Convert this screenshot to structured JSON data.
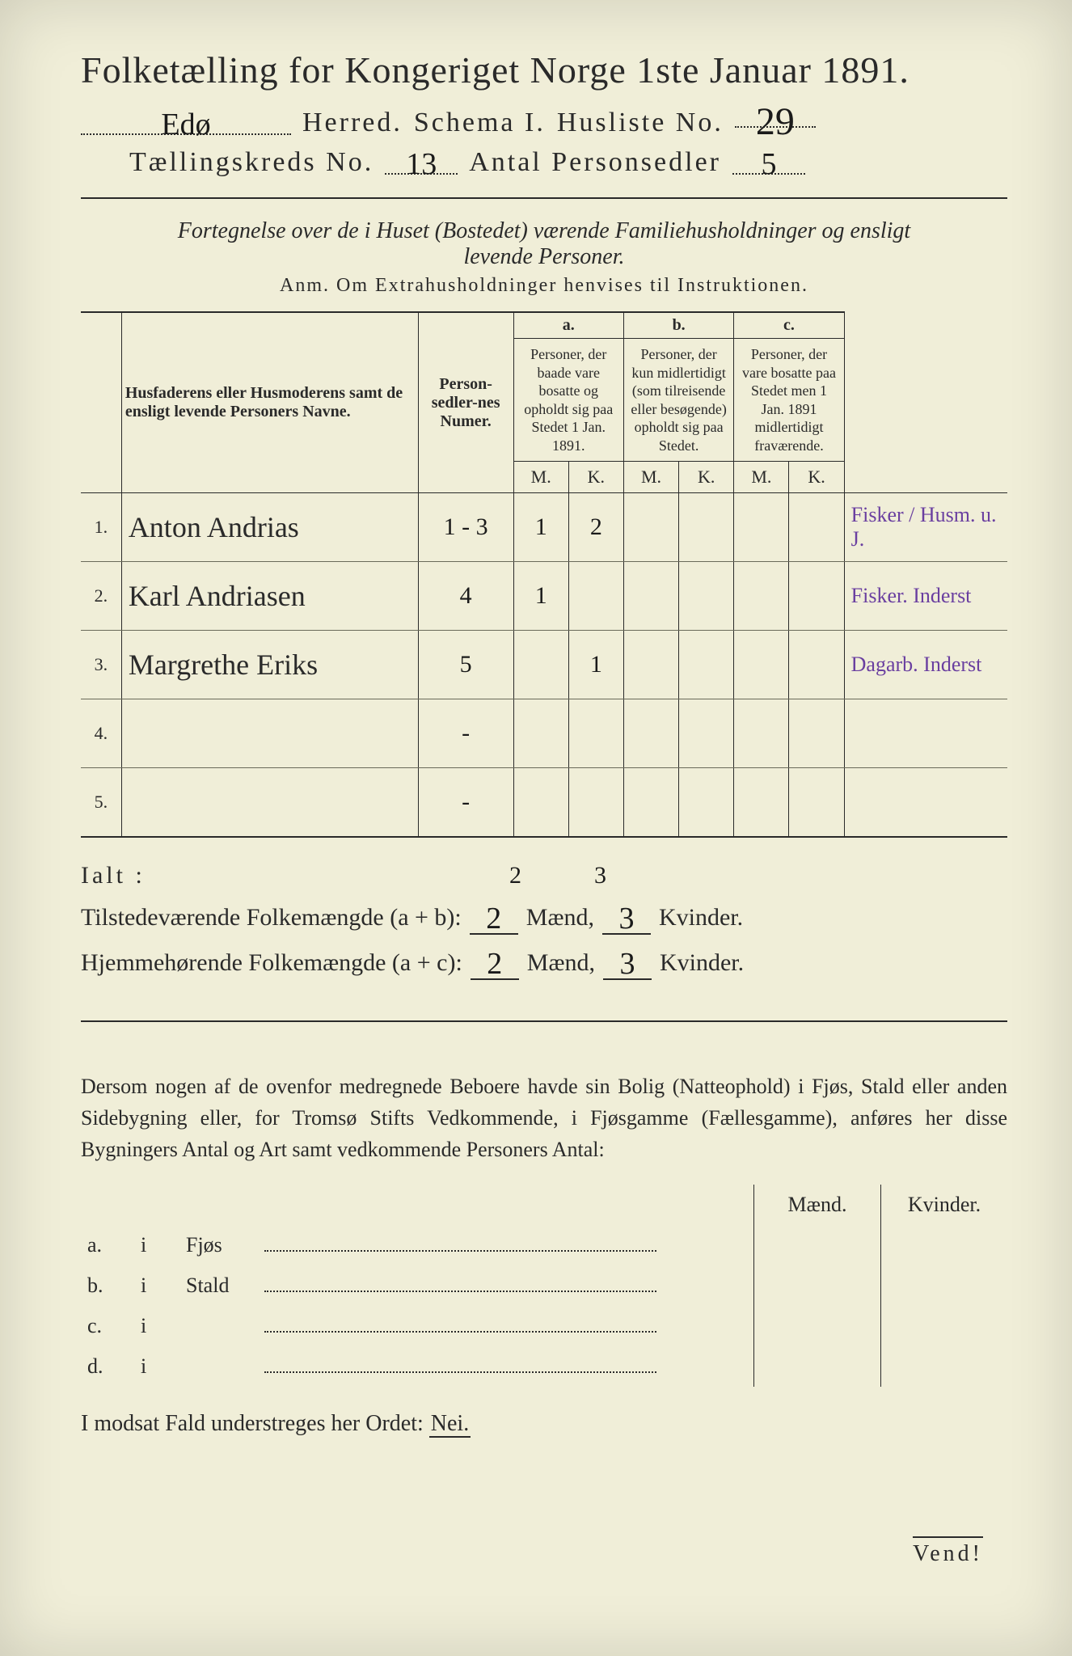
{
  "colors": {
    "paper": "#f0eed8",
    "ink": "#2a2a2a",
    "margin_ink": "#6a3fa0",
    "page_bg": "#3a3a3a"
  },
  "header": {
    "title": "Folketælling for Kongeriget Norge 1ste Januar 1891.",
    "herred_value": "Edø",
    "herred_label": "Herred.",
    "schema_label": "Schema I.",
    "husliste_label": "Husliste No.",
    "husliste_value": "29",
    "kreds_label": "Tællingskreds No.",
    "kreds_value": "13",
    "antal_label": "Antal Personsedler",
    "antal_value": "5"
  },
  "subtitle": "Fortegnelse over de i Huset (Bostedet) værende Familiehusholdninger og ensligt levende Personer.",
  "anm": "Anm.  Om Extrahusholdninger henvises til Instruktionen.",
  "table": {
    "col_names": "Husfaderens eller Husmoderens samt de ensligt levende Personers Navne.",
    "col_numer": "Person-sedler-nes Numer.",
    "col_a_label": "a.",
    "col_a_desc": "Personer, der baade vare bosatte og opholdt sig paa Stedet 1 Jan. 1891.",
    "col_b_label": "b.",
    "col_b_desc": "Personer, der kun midlertidigt (som tilreisende eller besøgende) opholdt sig paa Stedet.",
    "col_c_label": "c.",
    "col_c_desc": "Personer, der vare bosatte paa Stedet men 1 Jan. 1891 midlertidigt fraværende.",
    "m_label": "M.",
    "k_label": "K.",
    "rows": [
      {
        "n": "1.",
        "name": "Anton Andrias",
        "numer": "1 - 3",
        "aM": "1",
        "aK": "2",
        "bM": "",
        "bK": "",
        "cM": "",
        "cK": "",
        "margin": "Fisker / Husm. u. J."
      },
      {
        "n": "2.",
        "name": "Karl Andriasen",
        "numer": "4",
        "aM": "1",
        "aK": "",
        "bM": "",
        "bK": "",
        "cM": "",
        "cK": "",
        "margin": "Fisker. Inderst"
      },
      {
        "n": "3.",
        "name": "Margrethe Eriks",
        "numer": "5",
        "aM": "",
        "aK": "1",
        "bM": "",
        "bK": "",
        "cM": "",
        "cK": "",
        "margin": "Dagarb. Inderst"
      },
      {
        "n": "4.",
        "name": "",
        "numer": "-",
        "aM": "",
        "aK": "",
        "bM": "",
        "bK": "",
        "cM": "",
        "cK": "",
        "margin": ""
      },
      {
        "n": "5.",
        "name": "",
        "numer": "-",
        "aM": "",
        "aK": "",
        "bM": "",
        "bK": "",
        "cM": "",
        "cK": "",
        "margin": ""
      }
    ]
  },
  "totals": {
    "ialt_label": "Ialt :",
    "ialt_m": "2",
    "ialt_k": "3",
    "line1_label": "Tilstedeværende Folkemængde (a + b):",
    "line1_m": "2",
    "line1_k": "3",
    "line2_label": "Hjemmehørende Folkemængde (a + c):",
    "line2_m": "2",
    "line2_k": "3",
    "maend": "Mænd,",
    "kvinder": "Kvinder."
  },
  "paragraph": "Dersom nogen af de ovenfor medregnede Beboere havde sin Bolig (Natteophold) i Fjøs, Stald eller anden Sidebygning eller, for Tromsø Stifts Vedkommende, i Fjøsgamme (Fællesgamme), anføres her disse Bygningers Antal og Art samt vedkommende Personers Antal:",
  "buildings": {
    "maend": "Mænd.",
    "kvinder": "Kvinder.",
    "rows": [
      {
        "k": "a.",
        "i": "i",
        "label": "Fjøs"
      },
      {
        "k": "b.",
        "i": "i",
        "label": "Stald"
      },
      {
        "k": "c.",
        "i": "i",
        "label": ""
      },
      {
        "k": "d.",
        "i": "i",
        "label": ""
      }
    ]
  },
  "nei_line_pre": "I modsat Fald understreges her Ordet: ",
  "nei_word": "Nei.",
  "vend": "Vend!"
}
